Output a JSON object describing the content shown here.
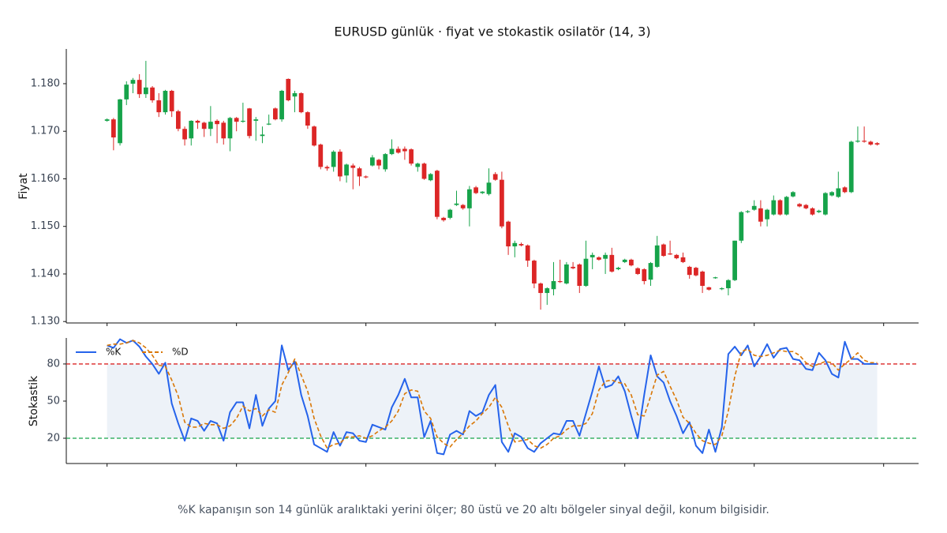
{
  "chart_data": [
    {
      "type": "candlestick",
      "title": "EURUSD günlük · fiyat ve stokastik osilatör (14, 3)",
      "ylabel": "Fiyat",
      "xlim": [
        -6.3,
        125.4
      ],
      "xticks": [
        0,
        20,
        40,
        60,
        80,
        100,
        120
      ],
      "ylim": [
        1.1297,
        1.1873
      ],
      "yticks": [
        {
          "value": 1.13,
          "label": "1.130"
        },
        {
          "value": 1.14,
          "label": "1.140"
        },
        {
          "value": 1.15,
          "label": "1.150"
        },
        {
          "value": 1.16,
          "label": "1.160"
        },
        {
          "value": 1.17,
          "label": "1.170"
        },
        {
          "value": 1.18,
          "label": "1.180"
        }
      ],
      "up_color": "#16a34a",
      "down_color": "#dc2626",
      "open": [
        1.1722,
        1.1725,
        1.1675,
        1.1767,
        1.18,
        1.1808,
        1.1778,
        1.1792,
        1.1765,
        1.174,
        1.1785,
        1.1742,
        1.1705,
        1.1685,
        1.1722,
        1.1718,
        1.1705,
        1.1722,
        1.1718,
        1.1685,
        1.1728,
        1.1722,
        1.1748,
        1.1722,
        1.169,
        1.1715,
        1.1748,
        1.1725,
        1.181,
        1.1773,
        1.178,
        1.174,
        1.171,
        1.1672,
        1.1625,
        1.1625,
        1.1657,
        1.1607,
        1.1628,
        1.1622,
        1.1605,
        1.1628,
        1.164,
        1.162,
        1.1652,
        1.1663,
        1.1663,
        1.1662,
        1.1625,
        1.1632,
        1.1597,
        1.1617,
        1.1518,
        1.1518,
        1.1545,
        1.1545,
        1.1538,
        1.1582,
        1.157,
        1.1568,
        1.161,
        1.1598,
        1.151,
        1.1458,
        1.1463,
        1.146,
        1.1428,
        1.138,
        1.136,
        1.1368,
        1.1385,
        1.138,
        1.1415,
        1.142,
        1.1375,
        1.1435,
        1.1435,
        1.1432,
        1.144,
        1.141,
        1.1425,
        1.143,
        1.1412,
        1.141,
        1.1388,
        1.1415,
        1.1462,
        1.1443,
        1.144,
        1.1435,
        1.1415,
        1.1413,
        1.1405,
        1.1372,
        1.1392,
        1.1368,
        1.137,
        1.1387,
        1.147,
        1.153,
        1.1535,
        1.1538,
        1.1515,
        1.1525,
        1.1555,
        1.1525,
        1.1563,
        1.1547,
        1.1545,
        1.1538,
        1.153,
        1.1525,
        1.1565,
        1.1562,
        1.1582,
        1.1572,
        1.1678,
        1.168,
        1.1678,
        1.1675
      ],
      "high": [
        1.1727,
        1.1728,
        1.1768,
        1.1805,
        1.1812,
        1.182,
        1.1848,
        1.1795,
        1.178,
        1.1787,
        1.1787,
        1.1745,
        1.171,
        1.1723,
        1.1724,
        1.172,
        1.1753,
        1.1725,
        1.1722,
        1.173,
        1.173,
        1.176,
        1.1749,
        1.173,
        1.171,
        1.1735,
        1.175,
        1.1787,
        1.1811,
        1.1785,
        1.1782,
        1.1742,
        1.1712,
        1.1674,
        1.1628,
        1.166,
        1.1662,
        1.1632,
        1.1632,
        1.1625,
        1.1607,
        1.165,
        1.1642,
        1.1654,
        1.1683,
        1.1668,
        1.1668,
        1.1664,
        1.1634,
        1.1634,
        1.1612,
        1.1619,
        1.152,
        1.1537,
        1.1575,
        1.1547,
        1.1585,
        1.1585,
        1.1574,
        1.1622,
        1.1614,
        1.1615,
        1.1512,
        1.147,
        1.1466,
        1.1462,
        1.143,
        1.1382,
        1.1372,
        1.1425,
        1.143,
        1.1425,
        1.1425,
        1.1422,
        1.147,
        1.1445,
        1.1437,
        1.1445,
        1.1455,
        1.1415,
        1.1432,
        1.1432,
        1.1414,
        1.1412,
        1.1425,
        1.148,
        1.1464,
        1.147,
        1.1442,
        1.1445,
        1.1417,
        1.1415,
        1.1407,
        1.1373,
        1.1394,
        1.1372,
        1.1389,
        1.147,
        1.1532,
        1.1534,
        1.1555,
        1.1555,
        1.1537,
        1.1565,
        1.1557,
        1.1564,
        1.1574,
        1.1549,
        1.1547,
        1.154,
        1.1535,
        1.1572,
        1.1574,
        1.1615,
        1.1584,
        1.168,
        1.171,
        1.171,
        1.168,
        1.1677
      ],
      "low": [
        1.172,
        1.166,
        1.167,
        1.1755,
        1.178,
        1.177,
        1.177,
        1.176,
        1.173,
        1.1735,
        1.173,
        1.17,
        1.167,
        1.167,
        1.1705,
        1.1688,
        1.169,
        1.1675,
        1.1672,
        1.1658,
        1.17,
        1.1718,
        1.1685,
        1.168,
        1.1675,
        1.1713,
        1.1723,
        1.172,
        1.1763,
        1.174,
        1.1738,
        1.1705,
        1.1668,
        1.162,
        1.1617,
        1.1615,
        1.1595,
        1.1592,
        1.1578,
        1.1585,
        1.1601,
        1.1626,
        1.162,
        1.1615,
        1.165,
        1.1653,
        1.164,
        1.1628,
        1.1615,
        1.1598,
        1.1595,
        1.1515,
        1.151,
        1.1515,
        1.1543,
        1.1535,
        1.15,
        1.1568,
        1.1568,
        1.1565,
        1.1596,
        1.1496,
        1.144,
        1.1435,
        1.1458,
        1.1415,
        1.137,
        1.1325,
        1.1335,
        1.1355,
        1.1381,
        1.1378,
        1.141,
        1.136,
        1.1373,
        1.141,
        1.1428,
        1.14,
        1.1403,
        1.1408,
        1.1423,
        1.1416,
        1.1398,
        1.1378,
        1.1375,
        1.1413,
        1.1436,
        1.144,
        1.1431,
        1.1423,
        1.139,
        1.1395,
        1.136,
        1.1365,
        1.139,
        1.1366,
        1.1355,
        1.1385,
        1.1465,
        1.1528,
        1.1533,
        1.15,
        1.15,
        1.1523,
        1.1523,
        1.1523,
        1.1561,
        1.154,
        1.1536,
        1.1523,
        1.1528,
        1.1523,
        1.1563,
        1.156,
        1.157,
        1.157,
        1.1676,
        1.1676,
        1.167,
        1.167
      ],
      "close": [
        1.1725,
        1.1687,
        1.1767,
        1.1798,
        1.1808,
        1.1778,
        1.1792,
        1.1765,
        1.174,
        1.1785,
        1.1742,
        1.1705,
        1.1683,
        1.1722,
        1.1718,
        1.1705,
        1.172,
        1.1715,
        1.1685,
        1.1728,
        1.172,
        1.1722,
        1.169,
        1.1725,
        1.1693,
        1.1716,
        1.1725,
        1.1785,
        1.1765,
        1.178,
        1.174,
        1.1712,
        1.167,
        1.1625,
        1.1622,
        1.1657,
        1.1605,
        1.163,
        1.1623,
        1.1605,
        1.1603,
        1.1645,
        1.1628,
        1.1652,
        1.1663,
        1.1655,
        1.1658,
        1.1632,
        1.1632,
        1.16,
        1.161,
        1.152,
        1.1513,
        1.1535,
        1.1548,
        1.1538,
        1.1578,
        1.157,
        1.1573,
        1.1592,
        1.1598,
        1.15,
        1.1458,
        1.1465,
        1.146,
        1.1428,
        1.138,
        1.136,
        1.137,
        1.1385,
        1.1383,
        1.142,
        1.1412,
        1.1375,
        1.1432,
        1.144,
        1.143,
        1.144,
        1.1405,
        1.1413,
        1.143,
        1.1418,
        1.14,
        1.1385,
        1.1423,
        1.146,
        1.1438,
        1.1442,
        1.1433,
        1.1425,
        1.1398,
        1.1397,
        1.1375,
        1.1367,
        1.1393,
        1.137,
        1.1387,
        1.147,
        1.153,
        1.1532,
        1.1543,
        1.151,
        1.1535,
        1.1555,
        1.1525,
        1.1562,
        1.1572,
        1.1542,
        1.1538,
        1.1525,
        1.1533,
        1.157,
        1.1572,
        1.158,
        1.1572,
        1.1678,
        1.168,
        1.1678,
        1.1672,
        1.1672
      ]
    },
    {
      "type": "line",
      "ylabel": "Stokastik",
      "legend": "upper left",
      "xlim": [
        -6.3,
        125.4
      ],
      "xticks": [
        0,
        20,
        40,
        60,
        80,
        100,
        120
      ],
      "ylim": [
        -0.4,
        101
      ],
      "yticks": [
        20,
        50,
        80
      ],
      "band": {
        "range": [
          20,
          80
        ],
        "color": "#e6ecf5"
      },
      "hlines": [
        {
          "value": 80,
          "color": "#dc2626"
        },
        {
          "value": 20,
          "color": "#16a34a"
        }
      ],
      "series": [
        {
          "name": "%K",
          "color": "#2563eb",
          "dashed": false,
          "values": [
            95,
            93,
            100,
            97,
            99,
            94,
            86,
            80,
            72,
            81,
            48,
            32,
            18,
            36,
            34,
            26,
            34,
            32,
            18,
            41,
            49,
            49,
            28,
            55,
            30,
            44,
            50,
            95,
            75,
            82,
            55,
            38,
            15,
            12,
            9,
            25,
            14,
            25,
            24,
            18,
            17,
            31,
            29,
            27,
            45,
            55,
            68,
            53,
            53,
            21,
            34,
            8,
            7,
            23,
            26,
            23,
            42,
            38,
            41,
            55,
            63,
            17,
            9,
            24,
            21,
            12,
            9,
            16,
            20,
            24,
            23,
            34,
            34,
            22,
            40,
            58,
            78,
            61,
            63,
            70,
            58,
            38,
            20,
            55,
            87,
            70,
            65,
            50,
            38,
            24,
            33,
            14,
            8,
            27,
            9,
            29,
            88,
            94,
            87,
            95,
            78,
            86,
            96,
            85,
            92,
            93,
            84,
            83,
            76,
            75,
            89,
            83,
            72,
            69,
            98,
            84,
            84,
            80,
            80,
            80
          ]
        },
        {
          "name": "%D",
          "color": "#d97706",
          "dashed": true,
          "values": [
            95,
            96,
            96,
            97,
            99,
            97,
            93,
            87,
            79,
            78,
            67,
            54,
            33,
            29,
            29,
            32,
            31,
            31,
            28,
            30,
            36,
            46,
            42,
            44,
            38,
            43,
            41,
            63,
            73,
            84,
            71,
            58,
            36,
            22,
            12,
            15,
            16,
            21,
            21,
            22,
            20,
            22,
            26,
            29,
            34,
            42,
            56,
            59,
            58,
            42,
            36,
            21,
            16,
            13,
            19,
            24,
            30,
            34,
            40,
            45,
            53,
            45,
            30,
            17,
            18,
            19,
            14,
            12,
            15,
            20,
            22,
            27,
            30,
            30,
            32,
            40,
            59,
            66,
            67,
            65,
            64,
            55,
            39,
            38,
            54,
            71,
            74,
            62,
            51,
            37,
            32,
            24,
            18,
            16,
            15,
            22,
            42,
            70,
            90,
            92,
            87,
            86,
            87,
            89,
            91,
            90,
            90,
            87,
            81,
            78,
            80,
            82,
            81,
            75,
            80,
            84,
            89,
            83,
            81,
            81
          ]
        }
      ]
    }
  ],
  "note": "%K kapanışın son 14 günlük aralıktaki yerini ölçer; 80 üstü ve 20 altı bölgeler sinyal değil, konum bilgisidir."
}
